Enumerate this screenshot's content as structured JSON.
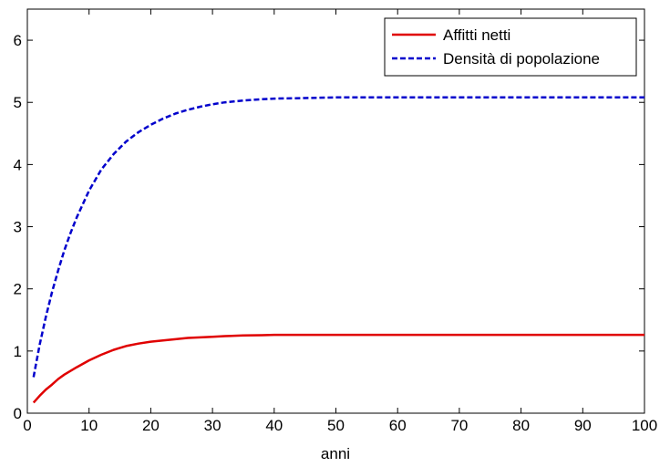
{
  "chart_data": {
    "type": "line",
    "title": "",
    "xlabel": "anni",
    "ylabel": "",
    "xlim": [
      0,
      100
    ],
    "ylim": [
      0,
      6.5
    ],
    "xticks": [
      0,
      10,
      20,
      30,
      40,
      50,
      60,
      70,
      80,
      90,
      100
    ],
    "yticks": [
      0,
      1,
      2,
      3,
      4,
      5,
      6
    ],
    "grid": false,
    "legend_position": "top-right",
    "series": [
      {
        "name": "Affitti netti",
        "color": "#e00000",
        "style": "solid",
        "x": [
          1,
          2,
          3,
          4,
          5,
          6,
          8,
          10,
          12,
          14,
          16,
          18,
          20,
          22,
          24,
          26,
          28,
          30,
          32,
          35,
          38,
          40,
          45,
          50,
          60,
          70,
          80,
          90,
          100
        ],
        "y": [
          0.17,
          0.28,
          0.38,
          0.46,
          0.55,
          0.62,
          0.74,
          0.85,
          0.94,
          1.02,
          1.08,
          1.12,
          1.15,
          1.17,
          1.19,
          1.21,
          1.22,
          1.23,
          1.24,
          1.25,
          1.255,
          1.26,
          1.26,
          1.26,
          1.26,
          1.26,
          1.26,
          1.26,
          1.26
        ]
      },
      {
        "name": "Densità di popolazione",
        "color": "#0000cc",
        "style": "dashed",
        "x": [
          1,
          2,
          3,
          4,
          5,
          6,
          7,
          8,
          10,
          12,
          14,
          16,
          18,
          20,
          22,
          24,
          26,
          28,
          30,
          32,
          35,
          38,
          40,
          45,
          50,
          60,
          70,
          80,
          90,
          100
        ],
        "y": [
          0.58,
          1.1,
          1.55,
          1.95,
          2.3,
          2.62,
          2.9,
          3.15,
          3.58,
          3.92,
          4.17,
          4.37,
          4.52,
          4.64,
          4.74,
          4.82,
          4.88,
          4.93,
          4.97,
          5.0,
          5.03,
          5.05,
          5.06,
          5.07,
          5.08,
          5.08,
          5.08,
          5.08,
          5.08,
          5.08
        ]
      }
    ]
  }
}
